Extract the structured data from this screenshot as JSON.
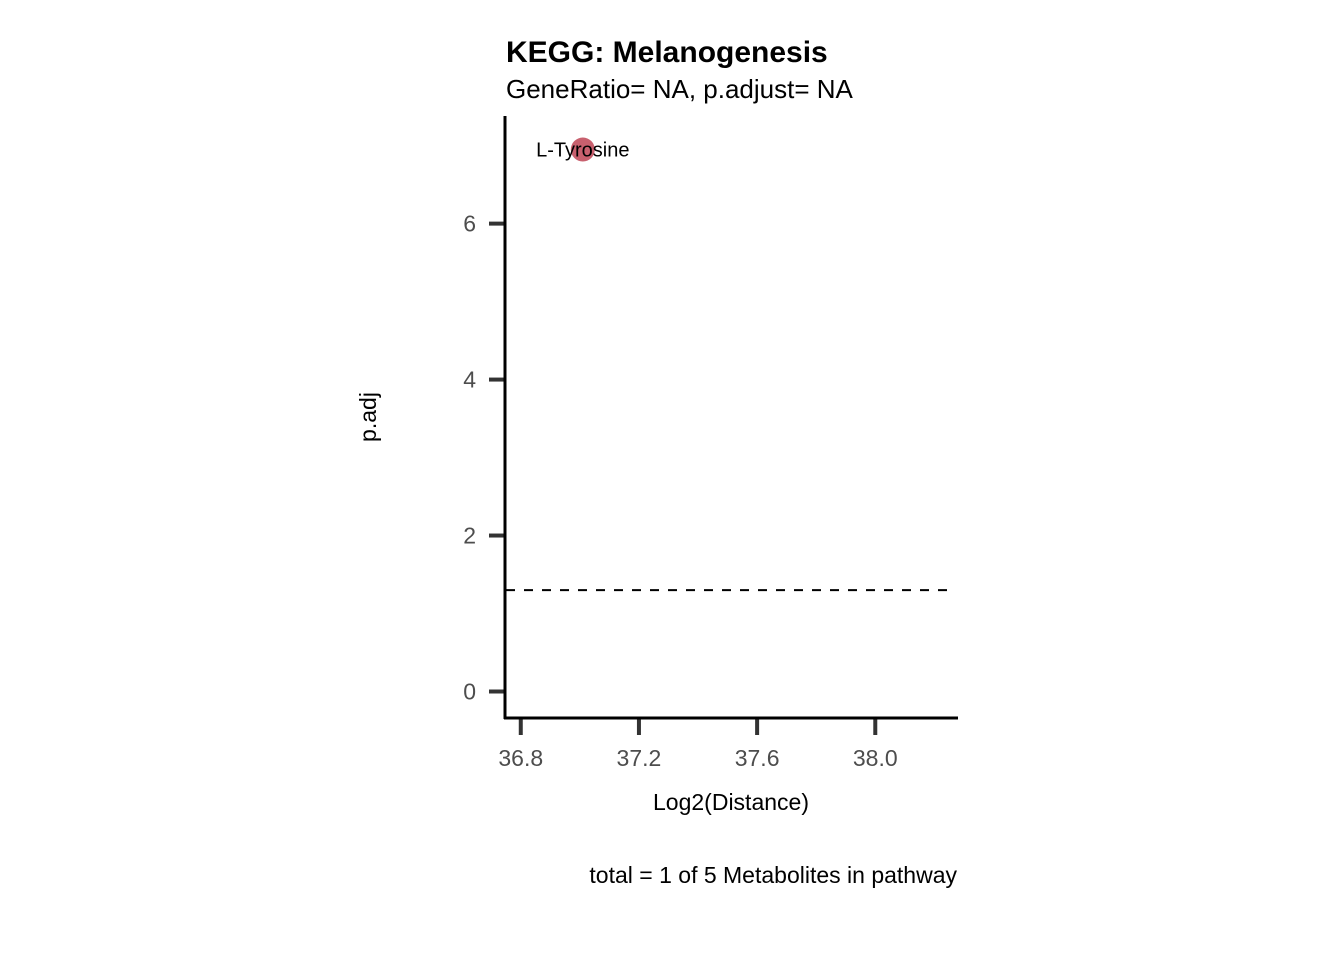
{
  "chart_data": {
    "type": "scatter",
    "title": "KEGG: Melanogenesis",
    "subtitle": "GeneRatio= NA, p.adjust= NA",
    "xlabel": "Log2(Distance)",
    "ylabel": "p.adj",
    "caption": "total = 1 of 5 Metabolites in pathway",
    "xlim": [
      36.75,
      38.28
    ],
    "ylim": [
      -0.34,
      7.38
    ],
    "x_ticks": [
      36.8,
      37.2,
      37.6,
      38.0
    ],
    "x_tick_labels": [
      "36.8",
      "37.2",
      "37.6",
      "38.0"
    ],
    "y_ticks": [
      0,
      2,
      4,
      6
    ],
    "y_tick_labels": [
      "0",
      "2",
      "4",
      "6"
    ],
    "points": [
      {
        "x": 37.01,
        "y": 6.95,
        "label": "L-Tyrosine"
      }
    ],
    "hline": {
      "y": 1.3,
      "style": "dashed"
    },
    "point_color": "#c8606e",
    "grid": false,
    "legend": "none"
  }
}
